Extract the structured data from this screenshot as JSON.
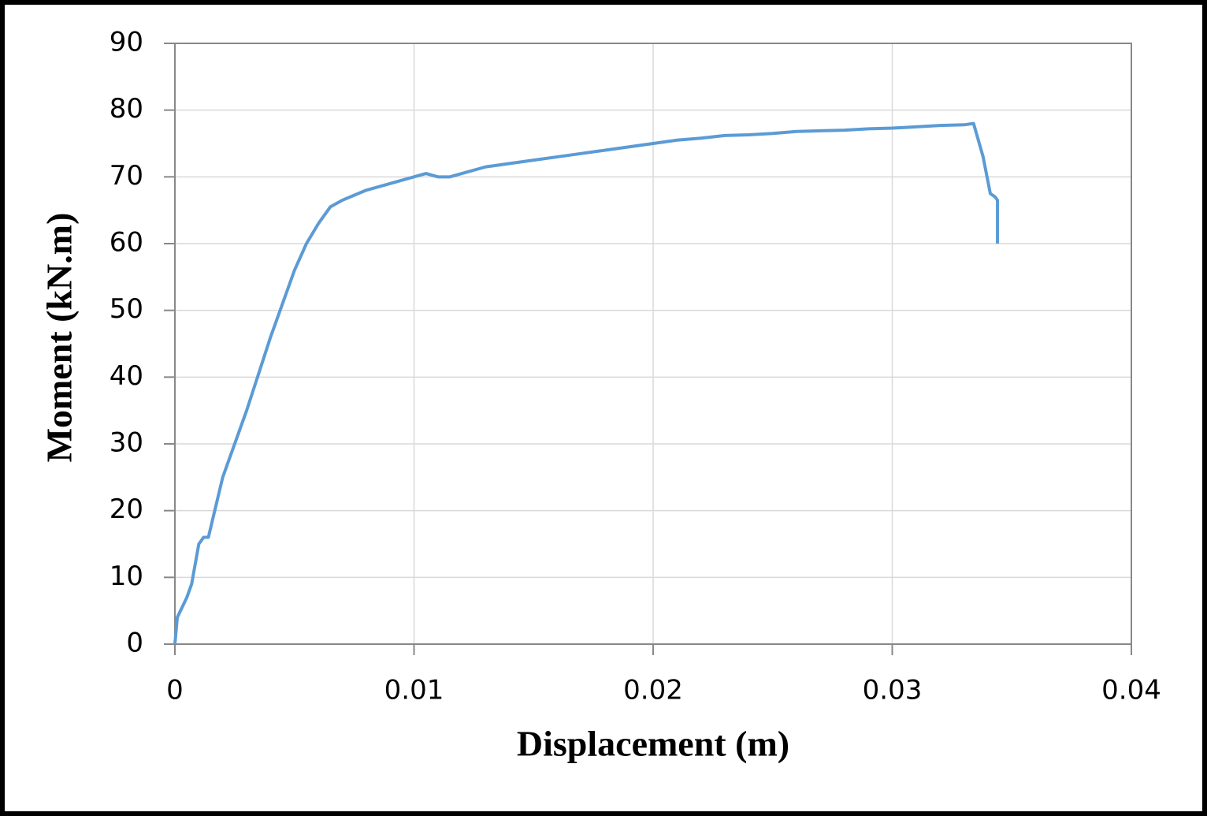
{
  "chart_data": {
    "type": "line",
    "x_label": "Displacement  (m)",
    "y_label": "Moment (kN.m)",
    "x": [
      0,
      0.0001,
      0.0005,
      0.0007,
      0.001,
      0.0012,
      0.0014,
      0.0016,
      0.002,
      0.003,
      0.004,
      0.005,
      0.0055,
      0.006,
      0.0065,
      0.007,
      0.008,
      0.009,
      0.01,
      0.0105,
      0.011,
      0.0115,
      0.012,
      0.013,
      0.014,
      0.015,
      0.016,
      0.017,
      0.018,
      0.019,
      0.02,
      0.021,
      0.022,
      0.023,
      0.024,
      0.025,
      0.026,
      0.027,
      0.028,
      0.029,
      0.03,
      0.031,
      0.032,
      0.033,
      0.0334,
      0.0338,
      0.0341,
      0.0343,
      0.0344,
      0.0344
    ],
    "values": [
      0,
      4,
      7,
      9,
      15,
      16,
      16,
      19,
      25,
      35,
      46,
      56,
      60,
      63,
      65.5,
      66.5,
      68,
      69,
      70,
      70.5,
      70,
      70,
      70.5,
      71.5,
      72,
      72.5,
      73,
      73.5,
      74,
      74.5,
      75,
      75.5,
      75.8,
      76.2,
      76.3,
      76.5,
      76.8,
      76.9,
      77,
      77.2,
      77.3,
      77.5,
      77.7,
      77.8,
      78,
      73,
      67.5,
      67,
      66.5,
      60
    ],
    "color": "#5b9bd5",
    "xlim": [
      0,
      0.04
    ],
    "xticks": [
      0,
      0.01,
      0.02,
      0.03,
      0.04
    ],
    "ylim": [
      0,
      90
    ],
    "yticks": [
      0,
      10,
      20,
      30,
      40,
      50,
      60,
      70,
      80,
      90
    ],
    "grid": true
  }
}
